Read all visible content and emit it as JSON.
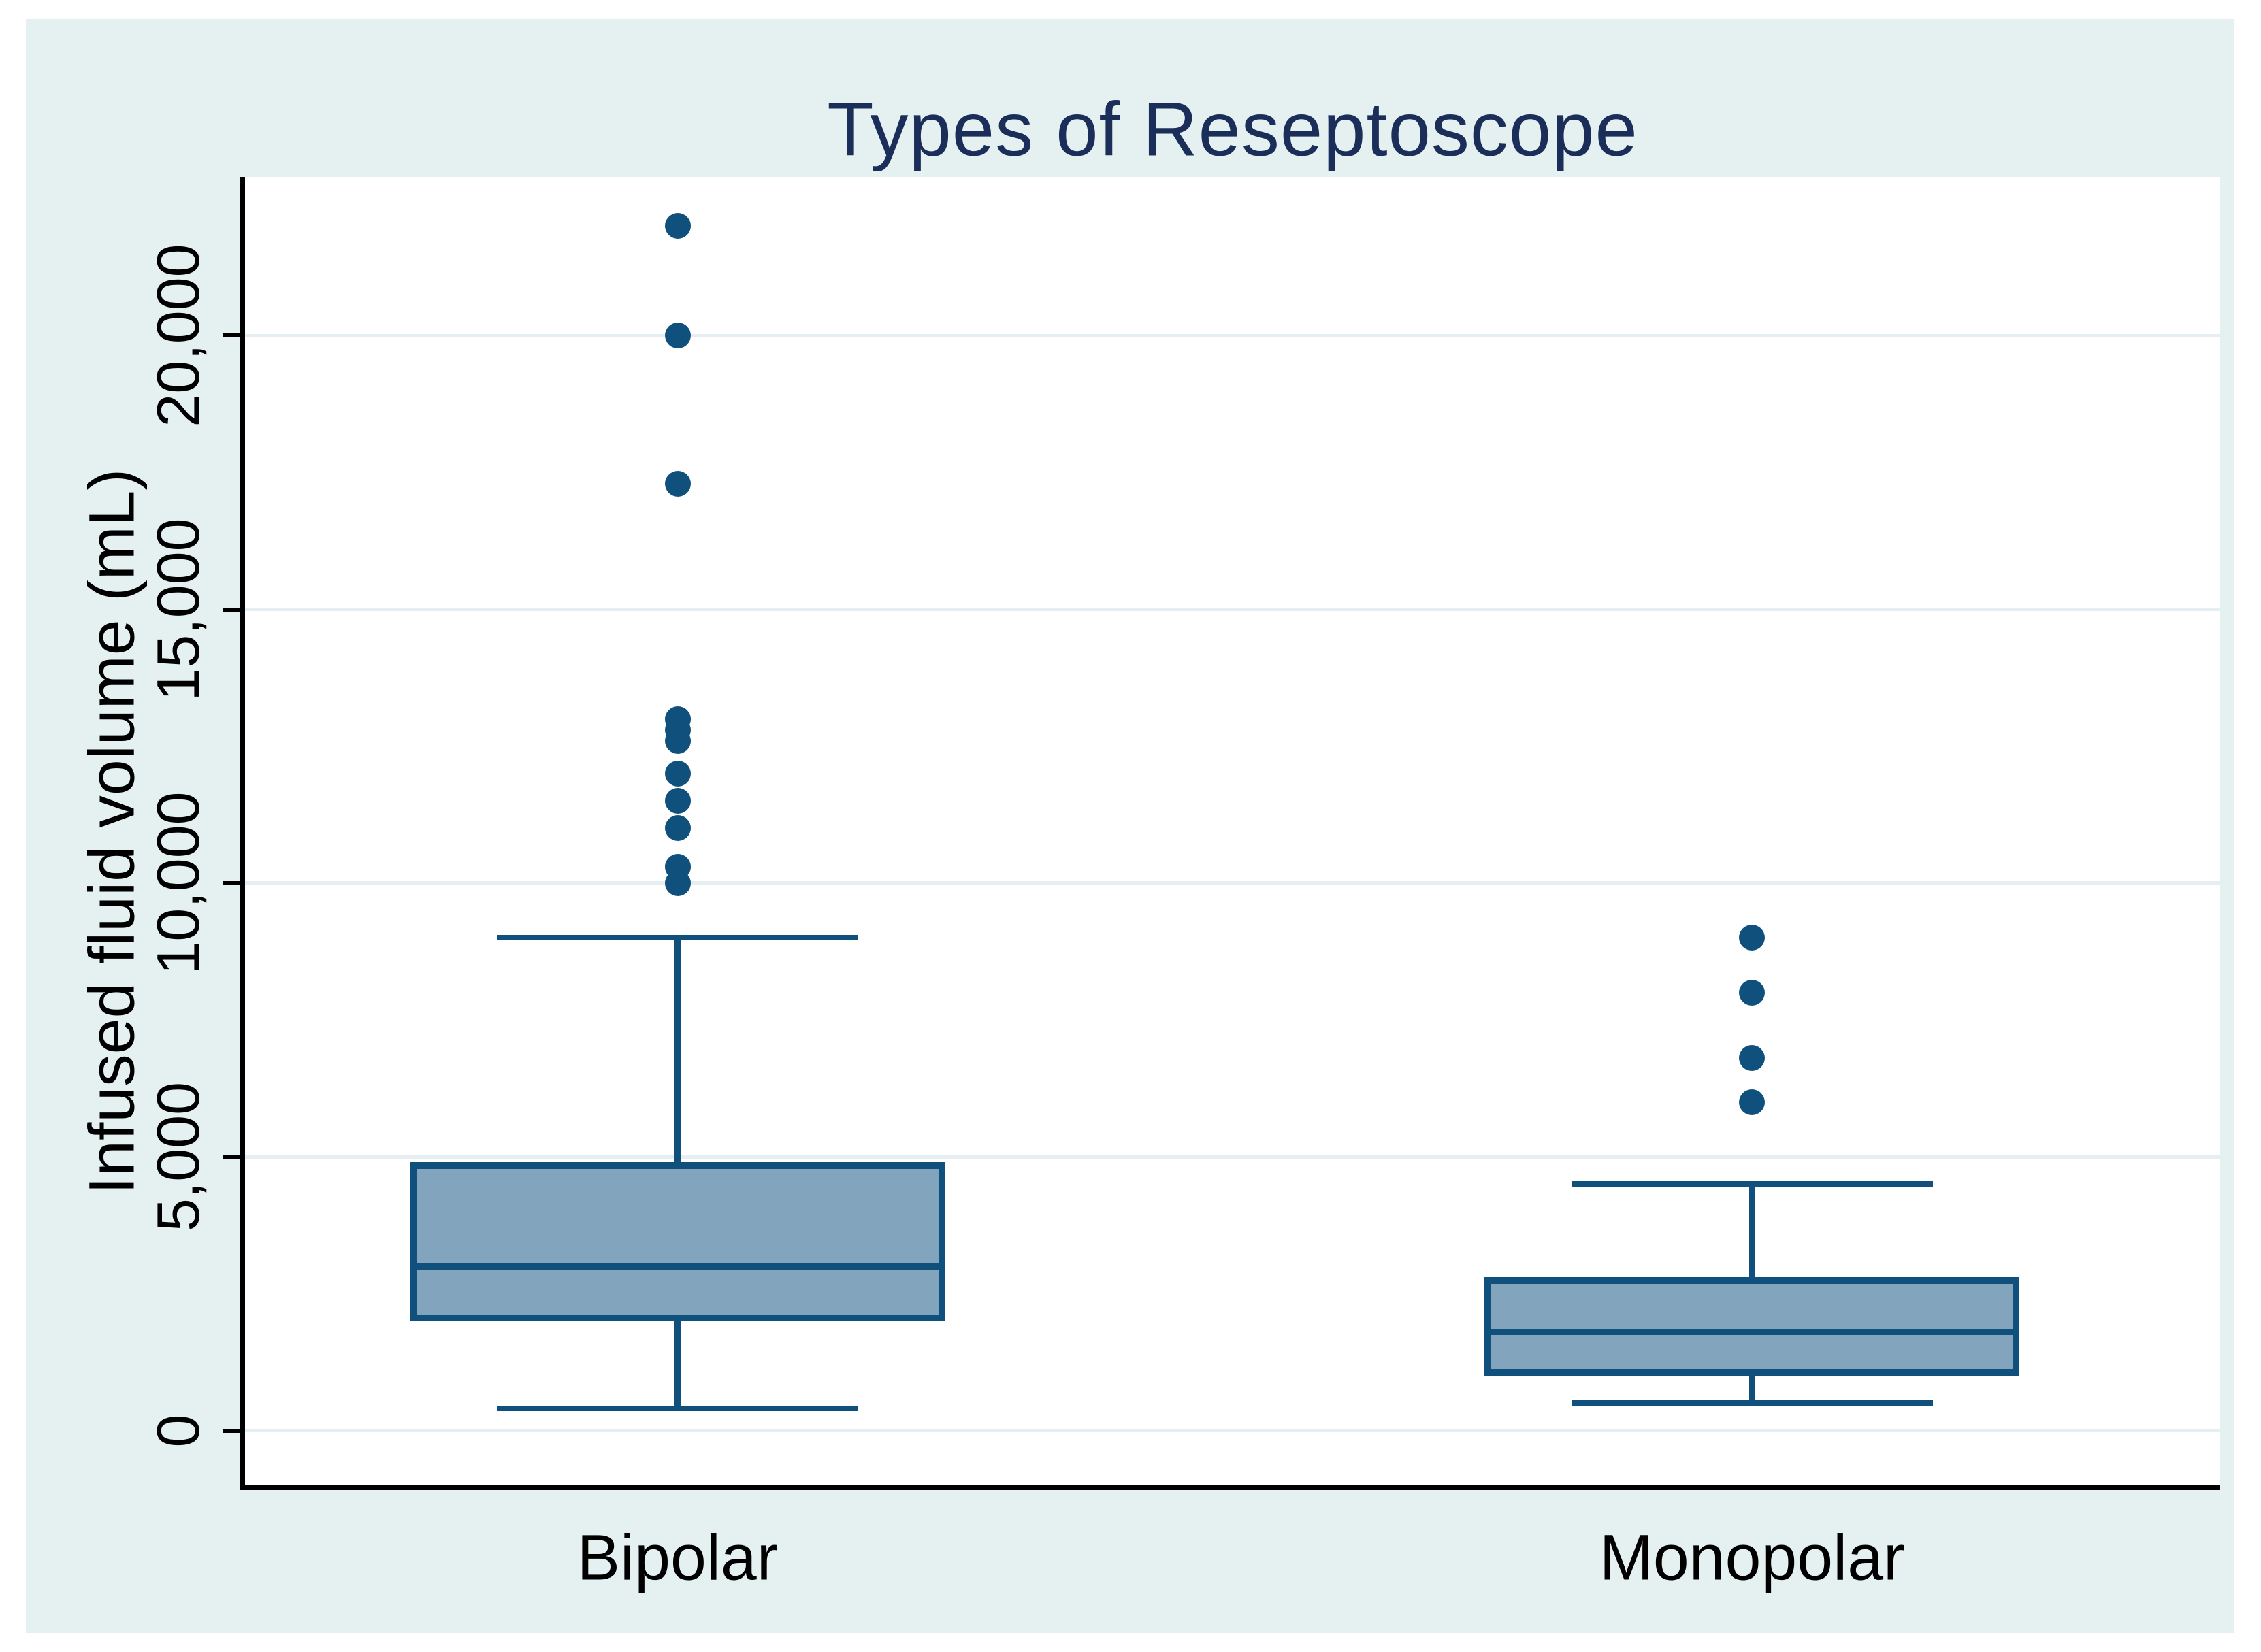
{
  "figure": {
    "title": "Types of Reseptoscope",
    "y_axis_label": "Infused fluid volume (mL)"
  },
  "chart_data": {
    "type": "box",
    "title": "Types of Reseptoscope",
    "ylabel": "Infused fluid volume (mL)",
    "xlabel": "",
    "categories": [
      "Bipolar",
      "Monopolar"
    ],
    "ylim": [
      -1000,
      22900
    ],
    "yticks": [
      0,
      5000,
      10000,
      15000,
      20000
    ],
    "ytick_labels": [
      "0",
      "5,000",
      "10,000",
      "15,000",
      "20,000"
    ],
    "grid": true,
    "legend": false,
    "series": [
      {
        "name": "Bipolar",
        "whisker_low": 400,
        "q1": 2000,
        "median": 3000,
        "q3": 4900,
        "whisker_high": 9000,
        "outliers": [
          10000,
          10300,
          11000,
          11500,
          12000,
          12600,
          12800,
          13000,
          17300,
          20000,
          22000
        ]
      },
      {
        "name": "Monopolar",
        "whisker_low": 500,
        "q1": 1000,
        "median": 1800,
        "q3": 2800,
        "whisker_high": 4500,
        "outliers": [
          6000,
          6800,
          8000,
          9000
        ]
      }
    ],
    "colors": {
      "background": "#e5f1f0",
      "plot_background": "#ffffff",
      "gridline": "#e4eef3",
      "axis": "#000000",
      "box_fill": "#82a5bd",
      "box_stroke": "#10507c",
      "outlier": "#10507c",
      "title": "#1b2e5a",
      "tick_text": "#000000"
    }
  }
}
